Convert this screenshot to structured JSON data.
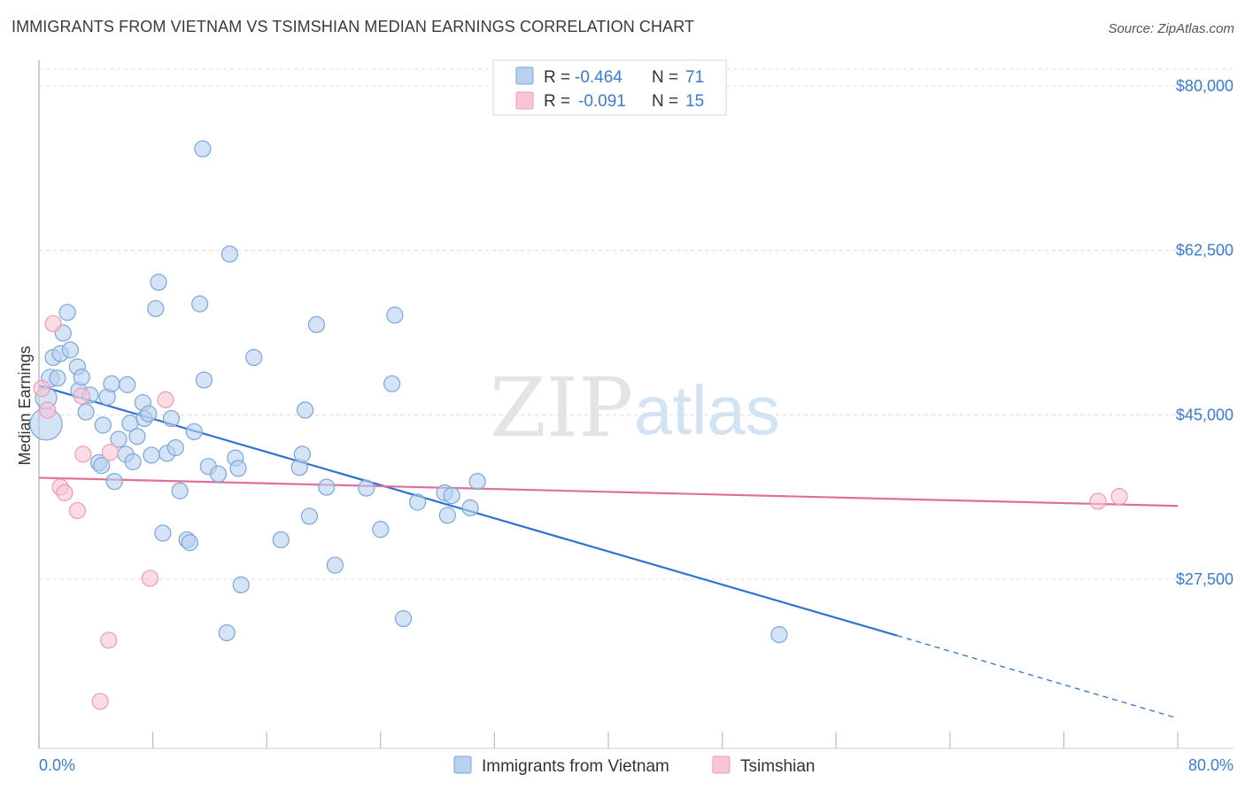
{
  "header": {
    "title": "IMMIGRANTS FROM VIETNAM VS TSIMSHIAN MEDIAN EARNINGS CORRELATION CHART",
    "source": "Source: ZipAtlas.com"
  },
  "watermark": {
    "part1": "ZIP",
    "part2": "atlas"
  },
  "legend_top": [
    {
      "r_label": "R =",
      "r_value": "-0.464",
      "n_label": "N =",
      "n_value": "71"
    },
    {
      "r_label": "R =",
      "r_value": "-0.091",
      "n_label": "N =",
      "n_value": "15"
    }
  ],
  "legend_bottom": [
    "Immigrants from Vietnam",
    "Tsimshian"
  ],
  "colors": {
    "blue_fill": "#b8d1f0",
    "blue_stroke": "#7aa6d9",
    "blue_line": "#2f72d0",
    "pink_fill": "#f8c5d4",
    "pink_stroke": "#ee9ab3",
    "pink_line": "#e0709a",
    "tick_text": "#3a7bd5",
    "grid": "#dddddd"
  },
  "chart_data": {
    "type": "scatter",
    "title": "IMMIGRANTS FROM VIETNAM VS TSIMSHIAN MEDIAN EARNINGS CORRELATION CHART",
    "xlabel": "",
    "ylabel": "Median Earnings",
    "xlim": [
      0,
      80
    ],
    "ylim": [
      10000,
      84000
    ],
    "x_tick_labels": [
      "0.0%",
      "80.0%"
    ],
    "y_ticks": [
      27500,
      45000,
      62500,
      80000
    ],
    "y_tick_labels": [
      "$27,500",
      "$45,000",
      "$62,500",
      "$80,000"
    ],
    "grid": true,
    "legend_position": "top-center",
    "series": [
      {
        "name": "Immigrants from Vietnam",
        "r": -0.464,
        "n": 71,
        "trend": {
          "x0": 0,
          "y0": 48100,
          "x1": 60.3,
          "y1": 21500,
          "dashed_to_x": 80,
          "dashed_to_y": 12700
        },
        "points": [
          [
            0.5,
            44000,
            18
          ],
          [
            0.5,
            46800,
            12
          ],
          [
            0.8,
            48900,
            10
          ],
          [
            1.0,
            51100,
            9
          ],
          [
            1.3,
            48900,
            9
          ],
          [
            1.5,
            51500,
            9
          ],
          [
            1.7,
            53700,
            9
          ],
          [
            2.0,
            55900,
            9
          ],
          [
            2.2,
            51900,
            9
          ],
          [
            2.7,
            50100,
            9
          ],
          [
            2.8,
            47600,
            9
          ],
          [
            3.0,
            49000,
            9
          ],
          [
            3.3,
            45300,
            9
          ],
          [
            3.6,
            47100,
            9
          ],
          [
            4.2,
            39900,
            9
          ],
          [
            4.4,
            39600,
            9
          ],
          [
            4.5,
            43900,
            9
          ],
          [
            4.8,
            46900,
            9
          ],
          [
            5.1,
            48300,
            9
          ],
          [
            5.3,
            37900,
            9
          ],
          [
            5.6,
            42400,
            9
          ],
          [
            6.1,
            40800,
            9
          ],
          [
            6.2,
            48200,
            9
          ],
          [
            6.4,
            44100,
            9
          ],
          [
            6.6,
            40000,
            9
          ],
          [
            6.9,
            42700,
            9
          ],
          [
            7.3,
            46300,
            9
          ],
          [
            7.4,
            44600,
            9
          ],
          [
            7.7,
            45100,
            9
          ],
          [
            7.9,
            40700,
            9
          ],
          [
            8.2,
            56300,
            9
          ],
          [
            8.4,
            59100,
            9
          ],
          [
            8.7,
            32400,
            9
          ],
          [
            9.0,
            40900,
            9
          ],
          [
            9.3,
            44600,
            9
          ],
          [
            9.6,
            41500,
            9
          ],
          [
            9.9,
            36900,
            9
          ],
          [
            10.4,
            31700,
            9
          ],
          [
            10.6,
            31400,
            9
          ],
          [
            10.9,
            43200,
            9
          ],
          [
            11.3,
            56800,
            9
          ],
          [
            11.5,
            73300,
            9
          ],
          [
            11.6,
            48700,
            9
          ],
          [
            11.9,
            39500,
            9
          ],
          [
            12.6,
            38700,
            9
          ],
          [
            13.2,
            21800,
            9
          ],
          [
            13.4,
            62100,
            9
          ],
          [
            13.8,
            40400,
            9
          ],
          [
            14.0,
            39300,
            9
          ],
          [
            14.2,
            26900,
            9
          ],
          [
            15.1,
            51100,
            9
          ],
          [
            17.0,
            31700,
            9
          ],
          [
            18.3,
            39400,
            9
          ],
          [
            18.5,
            40800,
            9
          ],
          [
            18.7,
            45500,
            9
          ],
          [
            19.0,
            34200,
            9
          ],
          [
            19.5,
            54600,
            9
          ],
          [
            20.2,
            37300,
            9
          ],
          [
            20.8,
            29000,
            9
          ],
          [
            23.0,
            37200,
            9
          ],
          [
            24.0,
            32800,
            9
          ],
          [
            24.8,
            48300,
            9
          ],
          [
            25.0,
            55600,
            9
          ],
          [
            25.6,
            23300,
            9
          ],
          [
            26.6,
            35700,
            9
          ],
          [
            28.5,
            36700,
            9
          ],
          [
            28.7,
            34300,
            9
          ],
          [
            29.0,
            36400,
            9
          ],
          [
            30.3,
            35100,
            9
          ],
          [
            30.8,
            37900,
            9
          ],
          [
            52.0,
            21600,
            9
          ]
        ]
      },
      {
        "name": "Tsimshian",
        "r": -0.091,
        "n": 15,
        "trend": {
          "x0": 0,
          "y0": 38300,
          "x1": 80,
          "y1": 35300
        },
        "points": [
          [
            0.2,
            47800,
            9
          ],
          [
            0.6,
            45500,
            9
          ],
          [
            1.0,
            54700,
            9
          ],
          [
            1.5,
            37300,
            9
          ],
          [
            1.8,
            36700,
            9
          ],
          [
            2.7,
            34800,
            9
          ],
          [
            3.0,
            47000,
            9
          ],
          [
            3.1,
            40800,
            9
          ],
          [
            4.3,
            14500,
            9
          ],
          [
            4.9,
            21000,
            9
          ],
          [
            5.0,
            41000,
            9
          ],
          [
            7.8,
            27600,
            9
          ],
          [
            8.9,
            46600,
            9
          ],
          [
            74.4,
            35800,
            9
          ],
          [
            75.9,
            36300,
            9
          ]
        ]
      }
    ]
  }
}
